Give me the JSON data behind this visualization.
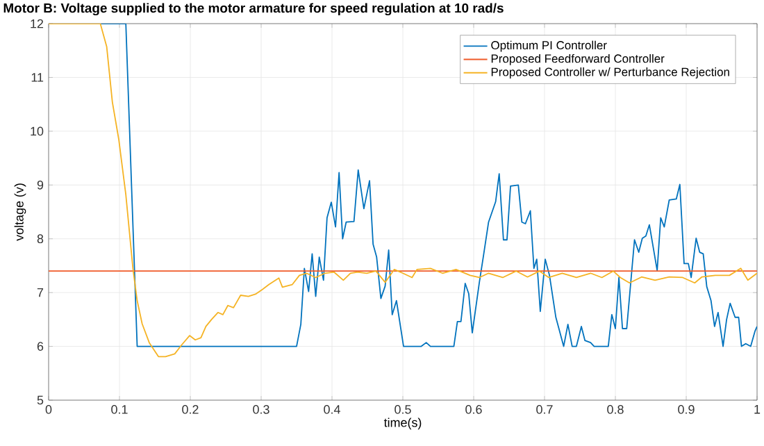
{
  "chart_data": {
    "type": "line",
    "title": "Motor B: Voltage supplied to the motor armature for speed regulation at 10 rad/s",
    "xlabel": "time(s)",
    "ylabel": "voltage (v)",
    "xlim": [
      0,
      1
    ],
    "ylim": [
      5,
      12
    ],
    "xticks": [
      0,
      0.1,
      0.2,
      0.3,
      0.4,
      0.5,
      0.6,
      0.7,
      0.8,
      0.9,
      1
    ],
    "yticks": [
      5,
      6,
      7,
      8,
      9,
      10,
      11,
      12
    ],
    "grid": true,
    "legend": "top right",
    "line_style": "solid",
    "marker": "none",
    "series": [
      {
        "name": "Optimum PI Controller",
        "color": "#0072bd",
        "x": [
          0,
          0.109,
          0.125,
          0.35,
          0.356,
          0.361,
          0.367,
          0.372,
          0.377,
          0.382,
          0.388,
          0.393,
          0.399,
          0.405,
          0.41,
          0.415,
          0.42,
          0.431,
          0.437,
          0.445,
          0.453,
          0.458,
          0.463,
          0.469,
          0.475,
          0.48,
          0.485,
          0.491,
          0.501,
          0.526,
          0.533,
          0.539,
          0.572,
          0.577,
          0.582,
          0.588,
          0.593,
          0.598,
          0.608,
          0.614,
          0.621,
          0.631,
          0.636,
          0.642,
          0.647,
          0.652,
          0.663,
          0.668,
          0.673,
          0.68,
          0.685,
          0.689,
          0.694,
          0.701,
          0.707,
          0.716,
          0.727,
          0.733,
          0.739,
          0.745,
          0.752,
          0.757,
          0.765,
          0.77,
          0.79,
          0.795,
          0.8,
          0.805,
          0.81,
          0.816,
          0.827,
          0.833,
          0.838,
          0.843,
          0.848,
          0.859,
          0.864,
          0.869,
          0.876,
          0.886,
          0.891,
          0.897,
          0.903,
          0.907,
          0.914,
          0.919,
          0.924,
          0.929,
          0.935,
          0.94,
          0.945,
          0.952,
          0.957,
          0.962,
          0.969,
          0.974,
          0.978,
          0.984,
          0.991,
          0.997,
          1.0
        ],
        "values": [
          12,
          12,
          6.0,
          6.0,
          6.41,
          7.45,
          7.02,
          7.72,
          6.93,
          7.66,
          7.23,
          8.39,
          8.68,
          8.22,
          9.23,
          8.0,
          8.31,
          8.32,
          9.28,
          8.56,
          9.08,
          7.9,
          7.66,
          6.89,
          7.12,
          7.79,
          6.59,
          6.85,
          6.0,
          6.0,
          6.07,
          6.0,
          6.0,
          6.46,
          6.46,
          7.17,
          6.98,
          6.25,
          7.19,
          7.7,
          8.31,
          8.69,
          9.21,
          7.98,
          7.98,
          8.98,
          9.0,
          8.31,
          8.28,
          8.52,
          7.45,
          7.62,
          6.65,
          7.62,
          7.32,
          6.54,
          6.0,
          6.41,
          6.0,
          6.0,
          6.37,
          6.11,
          6.07,
          6.0,
          6.0,
          6.59,
          6.33,
          7.28,
          6.33,
          6.33,
          7.98,
          7.75,
          8.01,
          8.05,
          8.26,
          7.41,
          8.39,
          8.22,
          8.72,
          8.74,
          9.01,
          7.54,
          7.54,
          7.28,
          8.01,
          7.75,
          7.72,
          7.11,
          6.85,
          6.37,
          6.63,
          6.0,
          6.5,
          6.8,
          6.54,
          6.54,
          6.0,
          6.05,
          6.0,
          6.28,
          6.37
        ]
      },
      {
        "name": "Proposed Feedforward Controller",
        "color": "#ef5a28",
        "x": [
          0,
          1
        ],
        "values": [
          7.4,
          7.4
        ]
      },
      {
        "name": "Proposed Controller w/ Perturbance Rejection",
        "color": "#f5b324",
        "x": [
          0,
          0.073,
          0.082,
          0.09,
          0.099,
          0.109,
          0.119,
          0.125,
          0.132,
          0.142,
          0.155,
          0.165,
          0.178,
          0.188,
          0.199,
          0.207,
          0.215,
          0.222,
          0.23,
          0.239,
          0.246,
          0.253,
          0.261,
          0.271,
          0.282,
          0.292,
          0.302,
          0.311,
          0.325,
          0.33,
          0.344,
          0.354,
          0.364,
          0.377,
          0.39,
          0.403,
          0.416,
          0.426,
          0.436,
          0.449,
          0.462,
          0.475,
          0.488,
          0.5,
          0.513,
          0.52,
          0.539,
          0.556,
          0.575,
          0.595,
          0.608,
          0.621,
          0.641,
          0.66,
          0.676,
          0.693,
          0.706,
          0.725,
          0.745,
          0.765,
          0.781,
          0.797,
          0.807,
          0.82,
          0.837,
          0.856,
          0.876,
          0.895,
          0.912,
          0.922,
          0.941,
          0.961,
          0.977,
          0.987,
          1.0
        ],
        "values": [
          12,
          12,
          11.57,
          10.54,
          9.85,
          8.82,
          7.45,
          6.85,
          6.42,
          6.07,
          5.81,
          5.81,
          5.86,
          6.03,
          6.2,
          6.12,
          6.16,
          6.37,
          6.5,
          6.63,
          6.59,
          6.76,
          6.72,
          6.95,
          6.93,
          6.97,
          7.06,
          7.15,
          7.27,
          7.1,
          7.15,
          7.32,
          7.36,
          7.28,
          7.36,
          7.38,
          7.23,
          7.36,
          7.38,
          7.36,
          7.4,
          7.19,
          7.43,
          7.36,
          7.28,
          7.43,
          7.45,
          7.36,
          7.43,
          7.32,
          7.28,
          7.36,
          7.28,
          7.4,
          7.29,
          7.4,
          7.28,
          7.36,
          7.28,
          7.36,
          7.28,
          7.4,
          7.28,
          7.18,
          7.29,
          7.23,
          7.29,
          7.28,
          7.18,
          7.29,
          7.32,
          7.32,
          7.45,
          7.23,
          7.36
        ]
      }
    ]
  }
}
